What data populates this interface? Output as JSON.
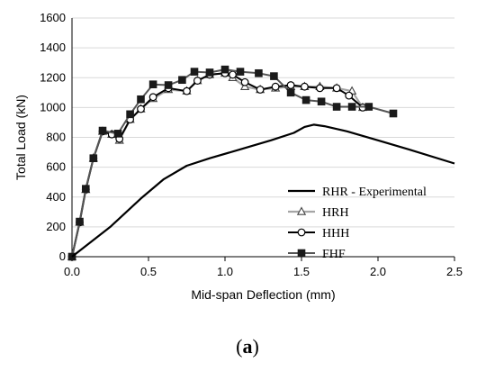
{
  "chart_data": {
    "type": "line",
    "xlabel": "Mid-span Deflection (mm)",
    "ylabel": "Total Load (kN)",
    "xlim": [
      0,
      2.5
    ],
    "ylim": [
      0,
      1600
    ],
    "xticks": [
      0,
      0.5,
      1,
      1.5,
      2,
      2.5
    ],
    "yticks": [
      0,
      200,
      400,
      600,
      800,
      1000,
      1200,
      1400,
      1600
    ],
    "xtick_labels": [
      "0.0",
      "0.5",
      "1.0",
      "1.5",
      "2.0",
      "2.5"
    ],
    "ytick_labels": [
      "0",
      "200",
      "400",
      "600",
      "800",
      "1000",
      "1200",
      "1400",
      "1600"
    ],
    "grid": "horizontal",
    "legend_position": "bottom-right",
    "series": [
      {
        "name": "RHR - Experimental",
        "color": "#000000",
        "marker": "none",
        "points": [
          [
            0,
            0
          ],
          [
            0.25,
            200
          ],
          [
            0.45,
            390
          ],
          [
            0.6,
            520
          ],
          [
            0.75,
            610
          ],
          [
            0.9,
            660
          ],
          [
            1.1,
            720
          ],
          [
            1.3,
            780
          ],
          [
            1.45,
            830
          ],
          [
            1.52,
            870
          ],
          [
            1.58,
            885
          ],
          [
            1.65,
            875
          ],
          [
            1.8,
            840
          ],
          [
            2.0,
            780
          ],
          [
            2.2,
            720
          ],
          [
            2.5,
            625
          ]
        ]
      },
      {
        "name": "HRH",
        "color": "#a6a6a6",
        "marker": "triangle",
        "points": [
          [
            0,
            0
          ],
          [
            0.05,
            230
          ],
          [
            0.09,
            450
          ],
          [
            0.14,
            660
          ],
          [
            0.2,
            840
          ],
          [
            0.26,
            820
          ],
          [
            0.31,
            780
          ],
          [
            0.38,
            920
          ],
          [
            0.45,
            990
          ],
          [
            0.53,
            1060
          ],
          [
            0.63,
            1120
          ],
          [
            0.75,
            1110
          ],
          [
            0.82,
            1180
          ],
          [
            0.9,
            1220
          ],
          [
            1.0,
            1230
          ],
          [
            1.05,
            1200
          ],
          [
            1.13,
            1140
          ],
          [
            1.23,
            1120
          ],
          [
            1.33,
            1130
          ],
          [
            1.43,
            1140
          ],
          [
            1.52,
            1140
          ],
          [
            1.62,
            1140
          ],
          [
            1.73,
            1130
          ],
          [
            1.83,
            1110
          ],
          [
            1.9,
            1000
          ]
        ]
      },
      {
        "name": "HHH",
        "color": "#000000",
        "marker": "circle",
        "points": [
          [
            0,
            0
          ],
          [
            0.05,
            230
          ],
          [
            0.09,
            450
          ],
          [
            0.14,
            660
          ],
          [
            0.2,
            840
          ],
          [
            0.26,
            820
          ],
          [
            0.31,
            790
          ],
          [
            0.38,
            920
          ],
          [
            0.45,
            990
          ],
          [
            0.53,
            1070
          ],
          [
            0.63,
            1130
          ],
          [
            0.75,
            1110
          ],
          [
            0.82,
            1180
          ],
          [
            0.9,
            1220
          ],
          [
            1.0,
            1230
          ],
          [
            1.05,
            1220
          ],
          [
            1.13,
            1170
          ],
          [
            1.23,
            1120
          ],
          [
            1.33,
            1140
          ],
          [
            1.43,
            1150
          ],
          [
            1.52,
            1140
          ],
          [
            1.62,
            1130
          ],
          [
            1.73,
            1130
          ],
          [
            1.81,
            1080
          ],
          [
            1.9,
            1000
          ]
        ]
      },
      {
        "name": "FHF",
        "color": "#555555",
        "marker": "square",
        "points": [
          [
            0,
            0
          ],
          [
            0.05,
            235
          ],
          [
            0.09,
            455
          ],
          [
            0.14,
            660
          ],
          [
            0.2,
            845
          ],
          [
            0.3,
            825
          ],
          [
            0.38,
            955
          ],
          [
            0.45,
            1055
          ],
          [
            0.53,
            1155
          ],
          [
            0.63,
            1150
          ],
          [
            0.72,
            1185
          ],
          [
            0.8,
            1240
          ],
          [
            0.9,
            1235
          ],
          [
            1.0,
            1255
          ],
          [
            1.1,
            1240
          ],
          [
            1.22,
            1230
          ],
          [
            1.32,
            1210
          ],
          [
            1.43,
            1100
          ],
          [
            1.53,
            1050
          ],
          [
            1.63,
            1040
          ],
          [
            1.73,
            1005
          ],
          [
            1.83,
            1005
          ],
          [
            1.94,
            1005
          ],
          [
            2.1,
            960
          ]
        ]
      }
    ]
  },
  "caption": {
    "open": "(",
    "letter": "a",
    "close": ")"
  }
}
